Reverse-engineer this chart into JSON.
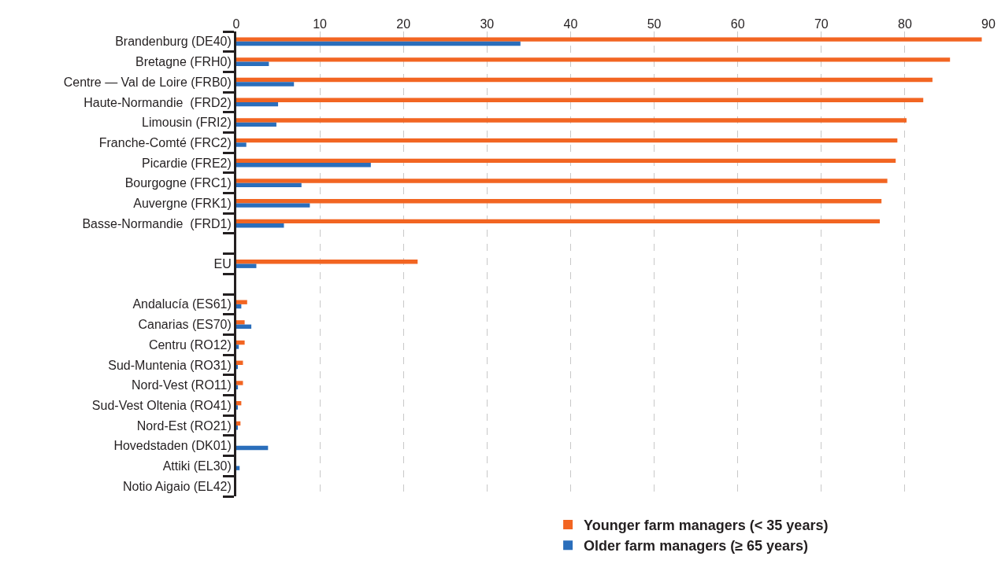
{
  "chart_data": {
    "type": "bar",
    "orientation": "horizontal",
    "categories": [
      "Brandenburg (DE40)",
      "Bretagne (FRH0)",
      "Centre — Val de Loire (FRB0)",
      "Haute-Normandie  (FRD2)",
      "Limousin (FRI2)",
      "Franche-Comté (FRC2)",
      "Picardie (FRE2)",
      "Bourgogne (FRC1)",
      "Auvergne (FRK1)",
      "Basse-Normandie  (FRD1)",
      null,
      "EU",
      null,
      "Andalucía (ES61)",
      "Canarias (ES70)",
      "Centru (RO12)",
      "Sud-Muntenia (RO31)",
      "Nord-Vest (RO11)",
      "Sud-Vest Oltenia (RO41)",
      "Nord-Est (RO21)",
      "Hovedstaden (DK01)",
      "Attiki (EL30)",
      "Notio Aigaio (EL42)"
    ],
    "series": [
      {
        "name": "Younger farm managers (< 35 years)",
        "color": "#f26522",
        "values": [
          89.2,
          85.4,
          83.3,
          82.2,
          80.2,
          79.1,
          78.9,
          77.9,
          77.2,
          77.0,
          null,
          21.7,
          null,
          1.3,
          1.0,
          1.0,
          0.8,
          0.8,
          0.6,
          0.5,
          0,
          0,
          0
        ]
      },
      {
        "name": "Older farm managers (≥ 65 years)",
        "color": "#2a6ebb",
        "values": [
          34.0,
          3.9,
          6.9,
          5.0,
          4.8,
          1.2,
          16.1,
          7.8,
          8.8,
          5.7,
          null,
          2.4,
          null,
          0.6,
          1.8,
          0.3,
          0.1,
          0.2,
          0.1,
          0.1,
          3.8,
          0.4,
          0
        ]
      }
    ],
    "xlim": [
      0,
      90
    ],
    "xticks": [
      0,
      10,
      20,
      30,
      40,
      50,
      60,
      70,
      80,
      90
    ],
    "grid": "x",
    "legend": "bottom"
  }
}
